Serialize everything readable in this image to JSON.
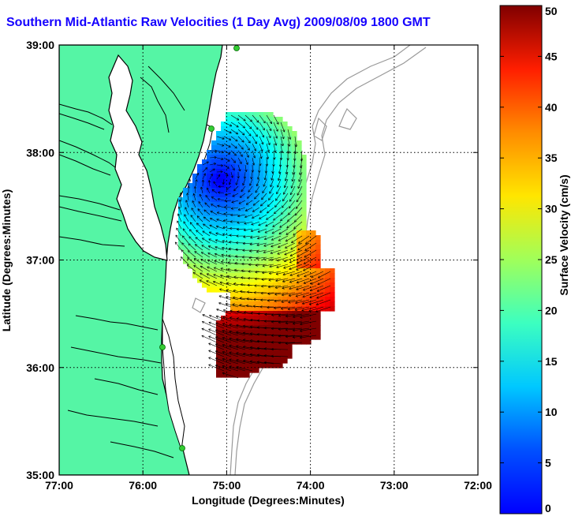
{
  "title": "Southern Mid-Atlantic Raw Velocities (1 Day Avg) 2009/08/09 1800 GMT",
  "axes": {
    "xlabel": "Longitude (Degrees:Minutes)",
    "ylabel": "Latitude (Degrees:Minutes)",
    "xticks": [
      "77:00",
      "76:00",
      "75:00",
      "74:00",
      "73:00",
      "72:00"
    ],
    "yticks": [
      "39:00",
      "38:00",
      "37:00",
      "36:00",
      "35:00"
    ]
  },
  "colorbar": {
    "label": "Surface Velocity (cm/s)",
    "min": 0,
    "max": 50,
    "ticks": [
      "0",
      "5",
      "10",
      "15",
      "20",
      "25",
      "30",
      "35",
      "40",
      "45",
      "50"
    ],
    "colormap": "jet"
  },
  "colors": {
    "title": "#1500ff",
    "land": "#55f5a5",
    "coast": "#000000",
    "bathymetry": "#999999",
    "station": "#33cc33"
  }
}
